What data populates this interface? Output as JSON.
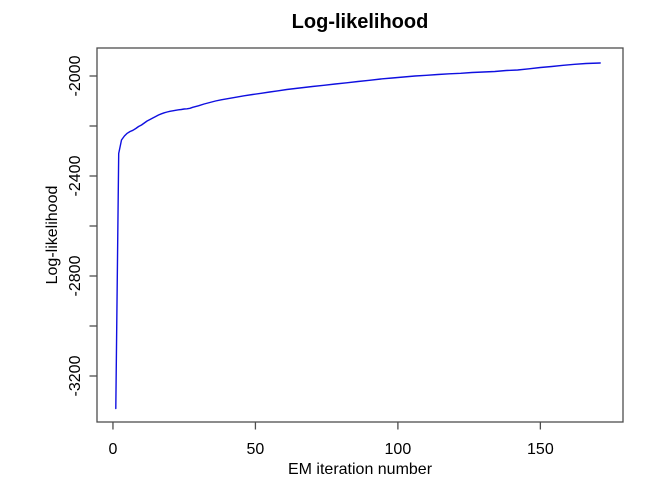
{
  "chart_data": {
    "type": "line",
    "title": "Log-likelihood",
    "xlabel": "EM iteration number",
    "ylabel": "Log-likelihood",
    "grid": false,
    "legend": null,
    "xlim": [
      -5.6,
      179
    ],
    "ylim": [
      -3384,
      -1888
    ],
    "xticks": [
      {
        "value": 0,
        "label": "0"
      },
      {
        "value": 50,
        "label": "50"
      },
      {
        "value": 100,
        "label": "100"
      },
      {
        "value": 150,
        "label": "150"
      }
    ],
    "yticks": [
      {
        "value": -2000,
        "label": "-2000"
      },
      {
        "value": -2200,
        "label": ""
      },
      {
        "value": -2400,
        "label": "-2400"
      },
      {
        "value": -2600,
        "label": ""
      },
      {
        "value": -2800,
        "label": "-2800"
      },
      {
        "value": -3000,
        "label": ""
      },
      {
        "value": -3200,
        "label": "-3200"
      }
    ],
    "colors": {
      "line": "#0f0fe0",
      "box": "#4d4d4d",
      "tick": "#4d4d4d",
      "text": "#000000",
      "background": "#ffffff"
    },
    "series": [
      {
        "name": "log-likelihood",
        "x": [
          1,
          2,
          3,
          4,
          5,
          6,
          7,
          8,
          9,
          10,
          11,
          12,
          13,
          14,
          15,
          16,
          17,
          18,
          19,
          20,
          21,
          22,
          23,
          24,
          25,
          26,
          27,
          28,
          30,
          32,
          34,
          36,
          38,
          40,
          43,
          46,
          49,
          52,
          55,
          58,
          61,
          64,
          67,
          70,
          74,
          78,
          82,
          86,
          90,
          94,
          98,
          102,
          106,
          110,
          114,
          118,
          122,
          126,
          130,
          134,
          138,
          142,
          146,
          150,
          154,
          158,
          162,
          166,
          171
        ],
        "y": [
          -3330,
          -2310,
          -2256,
          -2240,
          -2229,
          -2222,
          -2217,
          -2210,
          -2202,
          -2196,
          -2188,
          -2180,
          -2174,
          -2168,
          -2162,
          -2156,
          -2151,
          -2147,
          -2144,
          -2141,
          -2139,
          -2137,
          -2135,
          -2134,
          -2132,
          -2131,
          -2129,
          -2125,
          -2119,
          -2112,
          -2106,
          -2100,
          -2095,
          -2091,
          -2085,
          -2079,
          -2074,
          -2069,
          -2064,
          -2059,
          -2054,
          -2050,
          -2046,
          -2042,
          -2037,
          -2032,
          -2027,
          -2022,
          -2017,
          -2012,
          -2008,
          -2004,
          -2000,
          -1997,
          -1994,
          -1991,
          -1989,
          -1986,
          -1984,
          -1982,
          -1978,
          -1976,
          -1971,
          -1966,
          -1962,
          -1957,
          -1953,
          -1950,
          -1948
        ]
      }
    ]
  }
}
